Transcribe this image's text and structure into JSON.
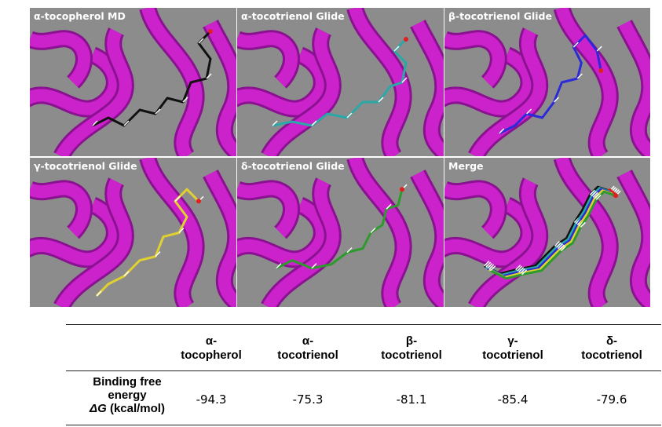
{
  "panels": [
    {
      "id": "p1",
      "label": "α-tocopherol MD",
      "ligand_color": "#111111"
    },
    {
      "id": "p2",
      "label": "α-tocotrienol Glide",
      "ligand_color": "#2aa8a8"
    },
    {
      "id": "p3",
      "label": "β-tocotrienol Glide",
      "ligand_color": "#2a2ad8"
    },
    {
      "id": "p4",
      "label": "γ-tocotrienol Glide",
      "ligand_color": "#e0d030"
    },
    {
      "id": "p5",
      "label": "δ-tocotrienol Glide",
      "ligand_color": "#2e9a2e"
    },
    {
      "id": "p6",
      "label": "Merge",
      "ligand_color": "#2e9a2e"
    }
  ],
  "colors": {
    "ribbon": "#cc22cc",
    "ribbon_dark": "#8a1290",
    "background": "#8c8c8c",
    "oxygen": "#e02020"
  },
  "table": {
    "columns": [
      {
        "line1": "α-",
        "line2": "tocopherol"
      },
      {
        "line1": "α-",
        "line2": "tocotrienol"
      },
      {
        "line1": "β-",
        "line2": "tocotrienol"
      },
      {
        "line1": "γ-",
        "line2": "tocotrienol"
      },
      {
        "line1": "δ-",
        "line2": "tocotrienol"
      }
    ],
    "row_label": {
      "line1": "Binding free",
      "line2": "energy",
      "symbol": "ΔG",
      "unit": " (kcal/mol)"
    },
    "values": [
      "-94.3",
      "-75.3",
      "-81.1",
      "-85.4",
      "-79.6"
    ]
  }
}
